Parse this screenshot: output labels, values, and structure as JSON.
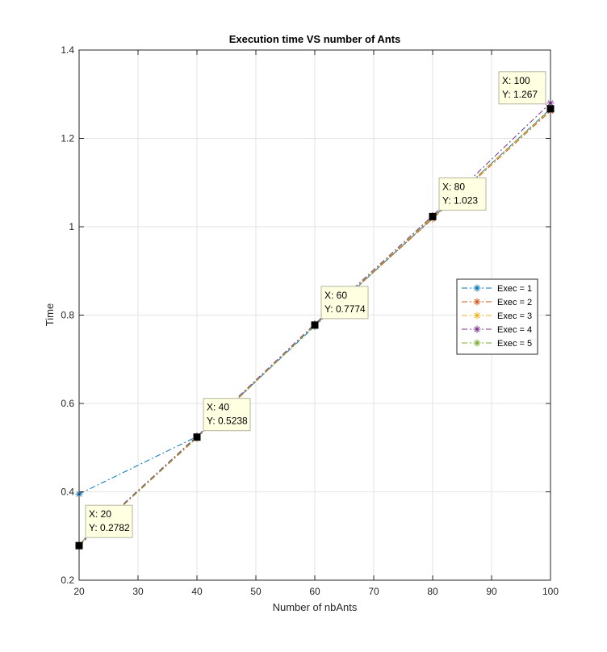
{
  "chart_data": {
    "type": "line",
    "title": "Execution time VS number of Ants",
    "xlabel": "Number of nbAnts",
    "ylabel": "Time",
    "xlim": [
      20,
      100
    ],
    "ylim": [
      0.2,
      1.4
    ],
    "xticks": [
      20,
      30,
      40,
      50,
      60,
      70,
      80,
      90,
      100
    ],
    "yticks": [
      "0.2",
      "0.4",
      "0.6",
      "0.8",
      "1",
      "1.2",
      "1.4"
    ],
    "grid": true,
    "legend_position": "center-right",
    "x": [
      20,
      40,
      60,
      80,
      100
    ],
    "series": [
      {
        "name": "Exec = 1",
        "color": "#0072BD",
        "values": [
          0.395,
          0.525,
          0.775,
          1.02,
          1.267
        ]
      },
      {
        "name": "Exec = 2",
        "color": "#D95319",
        "values": [
          0.278,
          0.522,
          0.777,
          1.018,
          1.262
        ]
      },
      {
        "name": "Exec = 3",
        "color": "#EDB120",
        "values": [
          0.279,
          0.524,
          0.778,
          1.021,
          1.265
        ]
      },
      {
        "name": "Exec = 4",
        "color": "#7E2F8E",
        "values": [
          0.28,
          0.526,
          0.78,
          1.025,
          1.28
        ]
      },
      {
        "name": "Exec = 5",
        "color": "#77AC30",
        "values": [
          0.278,
          0.523,
          0.777,
          1.022,
          1.266
        ]
      }
    ],
    "datatips": [
      {
        "x": 20,
        "y": 0.2782,
        "x_text": "X: 20",
        "y_text": "Y: 0.2782"
      },
      {
        "x": 40,
        "y": 0.5238,
        "x_text": "X: 40",
        "y_text": "Y: 0.5238"
      },
      {
        "x": 60,
        "y": 0.7774,
        "x_text": "X: 60",
        "y_text": "Y: 0.7774"
      },
      {
        "x": 80,
        "y": 1.023,
        "x_text": "X: 80",
        "y_text": "Y: 1.023"
      },
      {
        "x": 100,
        "y": 1.267,
        "x_text": "X: 100",
        "y_text": "Y: 1.267"
      }
    ]
  }
}
